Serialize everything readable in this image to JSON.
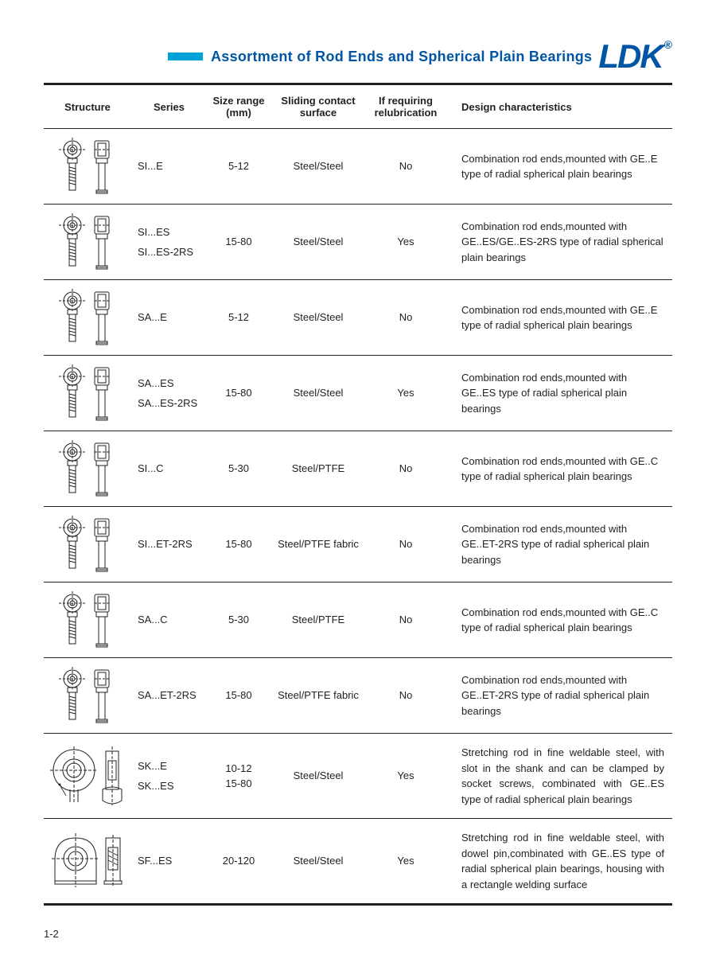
{
  "header": {
    "title": "Assortment of Rod Ends and Spherical Plain Bearings",
    "logo": "LDK",
    "reg": "®",
    "bar_color": "#00a3d9",
    "title_color": "#0056a4"
  },
  "columns": {
    "structure": "Structure",
    "series": "Series",
    "size": "Size  range (mm)",
    "surface": "Sliding contact surface",
    "relub": "If  requiring relubrication",
    "design": "Design  characteristics"
  },
  "rows": [
    {
      "series": [
        "SI...E"
      ],
      "size": "5-12",
      "surface": "Steel/Steel",
      "relub": "No",
      "design": "Combination rod ends,mounted with GE..E type of radial spherical plain bearings",
      "icon": "rodend-pair"
    },
    {
      "series": [
        "SI...ES",
        "SI...ES-2RS"
      ],
      "size": "15-80",
      "surface": "Steel/Steel",
      "relub": "Yes",
      "design": "Combination rod ends,mounted with GE..ES/GE..ES-2RS type of radial spherical plain bearings",
      "icon": "rodend-pair"
    },
    {
      "series": [
        "SA...E"
      ],
      "size": "5-12",
      "surface": "Steel/Steel",
      "relub": "No",
      "design": "Combination rod ends,mounted with GE..E type of radial spherical plain bearings",
      "icon": "rodend-pair"
    },
    {
      "series": [
        "SA...ES",
        "SA...ES-2RS"
      ],
      "size": "15-80",
      "surface": "Steel/Steel",
      "relub": "Yes",
      "design": "Combination rod ends,mounted with GE..ES type of radial spherical plain bearings",
      "icon": "rodend-pair"
    },
    {
      "series": [
        "SI...C"
      ],
      "size": "5-30",
      "surface": "Steel/PTFE",
      "relub": "No",
      "design": "Combination rod ends,mounted with GE..C type of radial spherical plain bearings",
      "icon": "rodend-pair"
    },
    {
      "series": [
        "SI...ET-2RS"
      ],
      "size": "15-80",
      "surface": "Steel/PTFE fabric",
      "relub": "No",
      "design": "Combination rod ends,mounted with GE..ET-2RS type of radial spherical plain bearings",
      "icon": "rodend-pair"
    },
    {
      "series": [
        "SA...C"
      ],
      "size": "5-30",
      "surface": "Steel/PTFE",
      "relub": "No",
      "design": "Combination rod ends,mounted with GE..C type of radial spherical plain bearings",
      "icon": "rodend-pair"
    },
    {
      "series": [
        "SA...ET-2RS"
      ],
      "size": "15-80",
      "surface": "Steel/PTFE fabric",
      "relub": "No",
      "design": "Combination rod ends,mounted with GE..ET-2RS type of radial spherical plain bearings",
      "icon": "rodend-pair"
    },
    {
      "series": [
        "SK...E",
        "SK...ES"
      ],
      "size": "10-12\n15-80",
      "surface": "Steel/Steel",
      "relub": "Yes",
      "design": "Stretching rod in fine weldable steel, with slot in the shank and can be clamped by socket screws, combinated with GE..ES type of radial spherical plain bearings",
      "icon": "weldable-circle",
      "justify": true
    },
    {
      "series": [
        "SF...ES"
      ],
      "size": "20-120",
      "surface": "Steel/Steel",
      "relub": "Yes",
      "design": "Stretching rod in fine weldable steel, with dowel pin,combinated with GE..ES type of radial spherical plain bearings, housing with a rectangle welding surface",
      "icon": "weldable-rect",
      "justify": true
    }
  ],
  "page_number": "1-2"
}
